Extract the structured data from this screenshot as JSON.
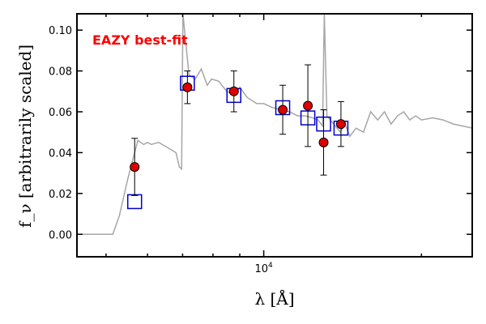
{
  "chart_data": {
    "type": "scatter",
    "x_scale": "log",
    "xlim": [
      4400,
      25000
    ],
    "ylim": [
      -0.011,
      0.108
    ],
    "grid": false,
    "legend": "none",
    "ylabel": "f_ν [arbitrarily scaled]",
    "xlabel": "λ [Å]",
    "annotation": "EAZY best-fit",
    "colors": {
      "annotation": "#ff0000",
      "template": "#a6a6a6",
      "model_box": "#0000cc",
      "observed_marker": "#dd0000",
      "errorbar": "#000000"
    },
    "y_ticks": [
      {
        "value": 0.0,
        "label": "0.00"
      },
      {
        "value": 0.02,
        "label": "0.02"
      },
      {
        "value": 0.04,
        "label": "0.04"
      },
      {
        "value": 0.06,
        "label": "0.06"
      },
      {
        "value": 0.08,
        "label": "0.08"
      },
      {
        "value": 0.1,
        "label": "0.10"
      }
    ],
    "x_major_tick": {
      "value": 10000,
      "label": "10",
      "exponent": "4"
    },
    "x_minor_ticks": [
      5000,
      6000,
      7000,
      8000,
      9000,
      20000
    ],
    "template": {
      "name": "EAZY best-fit",
      "x": [
        4400,
        5150,
        5300,
        5500,
        5750,
        5900,
        6000,
        6100,
        6300,
        6500,
        6800,
        6900,
        6970,
        7010,
        7200,
        7400,
        7600,
        7800,
        7950,
        8200,
        8500,
        8800,
        9000,
        9300,
        9700,
        10000,
        10400,
        10800,
        11200,
        11600,
        12000,
        12400,
        12700,
        12950,
        13050,
        13200,
        13500,
        14000,
        14300,
        14600,
        15000,
        15500,
        16000,
        16500,
        17000,
        17500,
        18000,
        18500,
        19000,
        19500,
        20000,
        21000,
        22000,
        23000,
        24000,
        25000
      ],
      "y": [
        0.0,
        0.0,
        0.009,
        0.027,
        0.046,
        0.044,
        0.045,
        0.044,
        0.045,
        0.043,
        0.04,
        0.033,
        0.032,
        0.108,
        0.078,
        0.076,
        0.081,
        0.073,
        0.076,
        0.075,
        0.07,
        0.068,
        0.072,
        0.067,
        0.064,
        0.064,
        0.062,
        0.061,
        0.06,
        0.058,
        0.058,
        0.057,
        0.056,
        0.053,
        0.108,
        0.058,
        0.055,
        0.05,
        0.054,
        0.048,
        0.052,
        0.05,
        0.06,
        0.056,
        0.06,
        0.054,
        0.058,
        0.06,
        0.056,
        0.058,
        0.056,
        0.057,
        0.056,
        0.054,
        0.053,
        0.052
      ]
    },
    "model_photometry": {
      "x": [
        5670,
        7150,
        8770,
        10870,
        12140,
        13010,
        14040
      ],
      "y": [
        0.016,
        0.074,
        0.068,
        0.062,
        0.057,
        0.054,
        0.052
      ]
    },
    "observed_photometry": {
      "x": [
        5670,
        7150,
        8770,
        10870,
        12140,
        13010,
        14040
      ],
      "y": [
        0.033,
        0.072,
        0.07,
        0.061,
        0.063,
        0.045,
        0.054
      ],
      "yerr": [
        0.014,
        0.008,
        0.01,
        0.012,
        0.02,
        0.016,
        0.011
      ]
    }
  }
}
